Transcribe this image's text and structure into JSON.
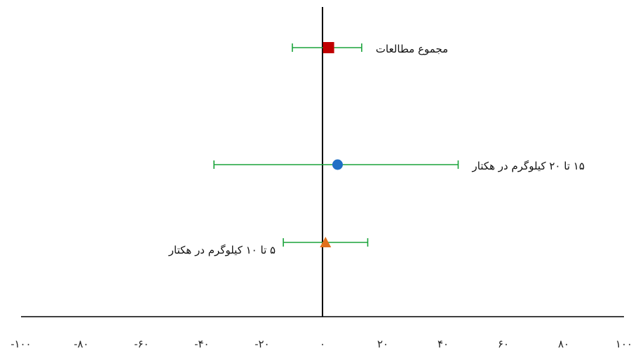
{
  "chart_data": {
    "type": "forest",
    "title": "",
    "xlabel": "",
    "ylabel": "",
    "xlim": [
      -100,
      100
    ],
    "x_ticks": [
      -100,
      -80,
      -60,
      -40,
      -20,
      0,
      20,
      40,
      60,
      80,
      100
    ],
    "x_tick_labels": [
      "-۱۰۰",
      "-۸۰",
      "-۶۰",
      "-۴۰",
      "-۲۰",
      "۰",
      "۲۰",
      "۴۰",
      "۶۰",
      "۸۰",
      "۱۰۰"
    ],
    "grid": false,
    "colors": {
      "ci": "#1aa33a",
      "axis": "#000000"
    },
    "rows": [
      {
        "label": "مجموع مطالعات",
        "estimate": 2,
        "ci_low": -10,
        "ci_high": 13,
        "marker": "square",
        "color": "#c00000",
        "label_side": "right"
      },
      {
        "label": "۱۵ تا ۲۰ کیلوگرم در هکتار",
        "estimate": 5,
        "ci_low": -36,
        "ci_high": 45,
        "marker": "circle",
        "color": "#1f6fc5",
        "label_side": "right"
      },
      {
        "label": "۵ تا ۱۰ کیلوگرم در هکتار",
        "estimate": 1,
        "ci_low": -13,
        "ci_high": 15,
        "marker": "triangle",
        "color": "#e0701c",
        "label_side": "left"
      }
    ]
  }
}
